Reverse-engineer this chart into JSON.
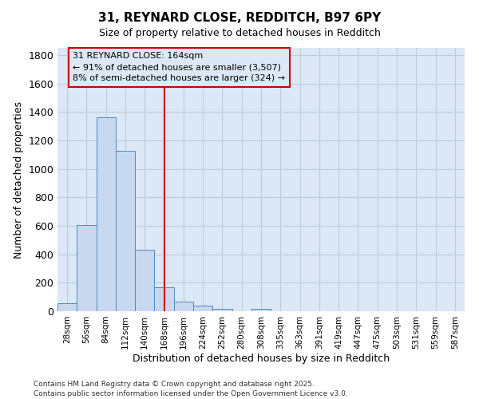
{
  "title1": "31, REYNARD CLOSE, REDDITCH, B97 6PY",
  "title2": "Size of property relative to detached houses in Redditch",
  "xlabel": "Distribution of detached houses by size in Redditch",
  "ylabel": "Number of detached properties",
  "bin_labels": [
    "28sqm",
    "56sqm",
    "84sqm",
    "112sqm",
    "140sqm",
    "168sqm",
    "196sqm",
    "224sqm",
    "252sqm",
    "280sqm",
    "308sqm",
    "335sqm",
    "363sqm",
    "391sqm",
    "419sqm",
    "447sqm",
    "475sqm",
    "503sqm",
    "531sqm",
    "559sqm",
    "587sqm"
  ],
  "bar_values": [
    55,
    605,
    1365,
    1125,
    430,
    170,
    65,
    40,
    15,
    0,
    15,
    0,
    0,
    0,
    0,
    0,
    0,
    0,
    0,
    0,
    0
  ],
  "bar_color": "#c8d8ee",
  "bar_edge_color": "#5588bb",
  "grid_color": "#bbccdd",
  "plot_bg_color": "#dce8f5",
  "fig_bg_color": "#ffffff",
  "vline_color": "#cc0000",
  "annotation_text": "31 REYNARD CLOSE: 164sqm\n← 91% of detached houses are smaller (3,507)\n8% of semi-detached houses are larger (324) →",
  "annotation_box_edge": "#cc0000",
  "ylim": [
    0,
    1850
  ],
  "yticks": [
    0,
    200,
    400,
    600,
    800,
    1000,
    1200,
    1400,
    1600,
    1800
  ],
  "vline_index": 5,
  "footnote": "Contains HM Land Registry data © Crown copyright and database right 2025.\nContains public sector information licensed under the Open Government Licence v3.0."
}
